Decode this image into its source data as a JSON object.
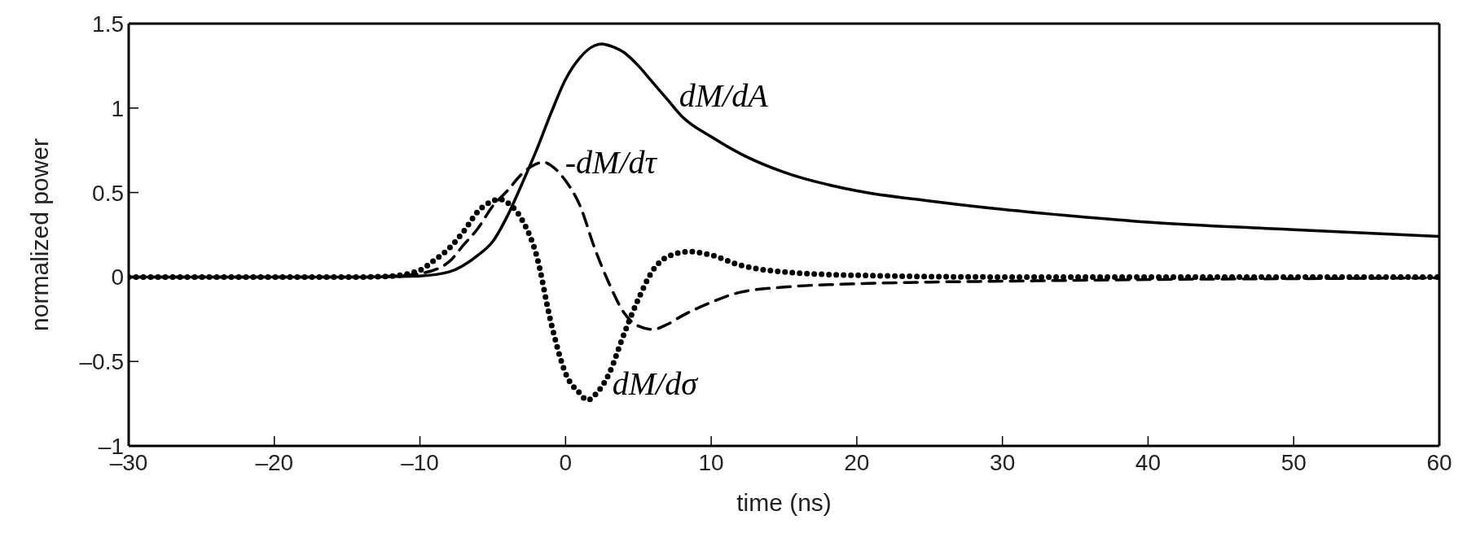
{
  "chart_data": {
    "type": "line",
    "xlabel": "time (ns)",
    "ylabel": "normalized power",
    "xlim": [
      -30,
      60
    ],
    "ylim": [
      -1,
      1.5
    ],
    "xticks": [
      {
        "value": -30,
        "label": "–30"
      },
      {
        "value": -20,
        "label": "–20"
      },
      {
        "value": -10,
        "label": "–10"
      },
      0,
      10,
      20,
      30,
      40,
      50,
      60
    ],
    "yticks": [
      {
        "value": -1,
        "label": "–1"
      },
      {
        "value": -0.5,
        "label": "–0.5"
      },
      0,
      0.5,
      1,
      1.5
    ],
    "series": [
      {
        "name": "dM/dA",
        "color": "#000000",
        "line_style": "solid",
        "x": [
          -30,
          -20,
          -14,
          -12,
          -10,
          -8,
          -6,
          -5,
          -4,
          -3,
          -2,
          -1,
          0,
          1,
          2,
          2.5,
          3,
          4,
          5,
          6,
          7,
          8,
          10,
          12,
          15,
          20,
          25,
          30,
          35,
          40,
          50,
          60
        ],
        "values": [
          0,
          0,
          0,
          0.002,
          0.006,
          0.03,
          0.13,
          0.21,
          0.36,
          0.55,
          0.75,
          0.97,
          1.17,
          1.3,
          1.37,
          1.38,
          1.37,
          1.33,
          1.25,
          1.15,
          1.05,
          0.95,
          0.83,
          0.73,
          0.62,
          0.51,
          0.45,
          0.4,
          0.36,
          0.325,
          0.28,
          0.24
        ]
      },
      {
        "name": "-dM/dτ",
        "color": "#000000",
        "line_style": "dashed",
        "x": [
          -30,
          -20,
          -14,
          -12,
          -10,
          -8,
          -7,
          -6,
          -5,
          -4,
          -3,
          -2,
          -1.5,
          -1,
          0,
          1,
          2,
          3,
          4,
          5,
          6,
          7,
          8,
          10,
          12,
          15,
          20,
          25,
          30,
          40,
          50,
          60
        ],
        "values": [
          0,
          0,
          0,
          0.005,
          0.02,
          0.09,
          0.19,
          0.29,
          0.42,
          0.51,
          0.61,
          0.67,
          0.68,
          0.66,
          0.57,
          0.42,
          0.17,
          -0.04,
          -0.21,
          -0.29,
          -0.31,
          -0.28,
          -0.23,
          -0.15,
          -0.09,
          -0.06,
          -0.04,
          -0.03,
          -0.025,
          -0.015,
          -0.01,
          -0.005
        ]
      },
      {
        "name": "dM/dσ",
        "color": "#000000",
        "line_style": "dotted",
        "x": [
          -30,
          -20,
          -14,
          -12,
          -10,
          -9,
          -8,
          -7,
          -6,
          -5,
          -4.5,
          -4,
          -3,
          -2,
          -1,
          0,
          1,
          1.5,
          2,
          3,
          4,
          5,
          6,
          7,
          8.5,
          10,
          12,
          15,
          20,
          30,
          40,
          50,
          60
        ],
        "values": [
          0,
          0,
          0,
          0.005,
          0.04,
          0.1,
          0.17,
          0.27,
          0.39,
          0.45,
          0.46,
          0.44,
          0.34,
          0.13,
          -0.27,
          -0.57,
          -0.69,
          -0.73,
          -0.7,
          -0.57,
          -0.34,
          -0.13,
          0.04,
          0.12,
          0.15,
          0.13,
          0.07,
          0.03,
          0.01,
          0,
          0,
          0,
          0
        ]
      }
    ]
  }
}
